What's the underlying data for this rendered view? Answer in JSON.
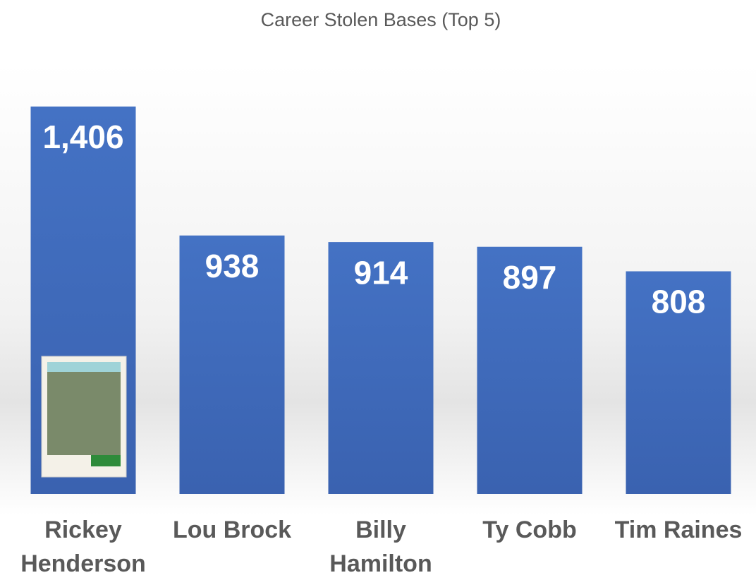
{
  "chart_data": {
    "type": "bar",
    "title": "Career Stolen Bases (Top 5)",
    "categories": [
      "Rickey Henderson",
      "Lou Brock",
      "Billy Hamilton",
      "Ty Cobb",
      "Tim Raines"
    ],
    "values": [
      1406,
      938,
      914,
      897,
      808
    ],
    "value_labels": [
      "1,406",
      "938",
      "914",
      "897",
      "808"
    ],
    "color": "#4472c4",
    "ylim": [
      0,
      1406
    ]
  }
}
